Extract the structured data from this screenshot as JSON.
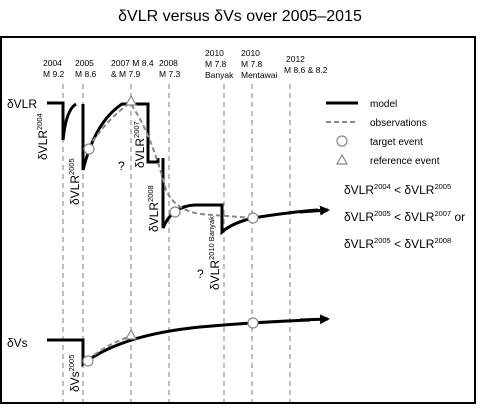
{
  "title": "δVLR versus δVs over 2005–2015",
  "events": [
    {
      "year": "2004",
      "mag": "M 9.2"
    },
    {
      "year": "2005",
      "mag": "M 8.6"
    },
    {
      "year": "2007",
      "mag": "M 8.4\n& M 7.9"
    },
    {
      "year": "2008",
      "mag": "M 7.3"
    },
    {
      "year": "2010",
      "mag": "M 7.8\nBanyak"
    },
    {
      "year": "2010",
      "mag": "M 7.8\nMentawai"
    },
    {
      "year": "2012",
      "mag": "M 8.6 & 8.2"
    }
  ],
  "axis_labels": {
    "vlr": "δVLR",
    "vs": "δVs"
  },
  "curve_labels": {
    "vlr2004": {
      "base": "δVLR",
      "sup": "2004"
    },
    "vlr2005": {
      "base": "δVLR",
      "sup": "2005"
    },
    "vlr2007": {
      "base": "δVLR",
      "sup": "2007"
    },
    "vlr2008": {
      "base": "δVLR",
      "sup": "2008"
    },
    "vlr2010": {
      "base": "δVLR",
      "sup": "2010 Banyak"
    },
    "vs2005": {
      "base": "δVs",
      "sup": "2005"
    }
  },
  "question_marks": [
    "?",
    "?"
  ],
  "legend": {
    "model": "model",
    "observations": "observations",
    "target": "target event",
    "reference": "reference event"
  },
  "inequalities": [
    {
      "a": "δVLR",
      "a_sup": "2004",
      "op": "<",
      "b": "δVLR",
      "b_sup": "2005",
      "tail": ""
    },
    {
      "a": "δVLR",
      "a_sup": "2005",
      "op": "<",
      "b": "δVLR",
      "b_sup": "2007",
      "tail": "or"
    },
    {
      "a": "δVLR",
      "a_sup": "2005",
      "op": "<",
      "b": "δVLR",
      "b_sup": "2008",
      "tail": ""
    }
  ],
  "colors": {
    "model": "#000000",
    "observations": "#888888",
    "event_lines": "#aaaaaa"
  }
}
